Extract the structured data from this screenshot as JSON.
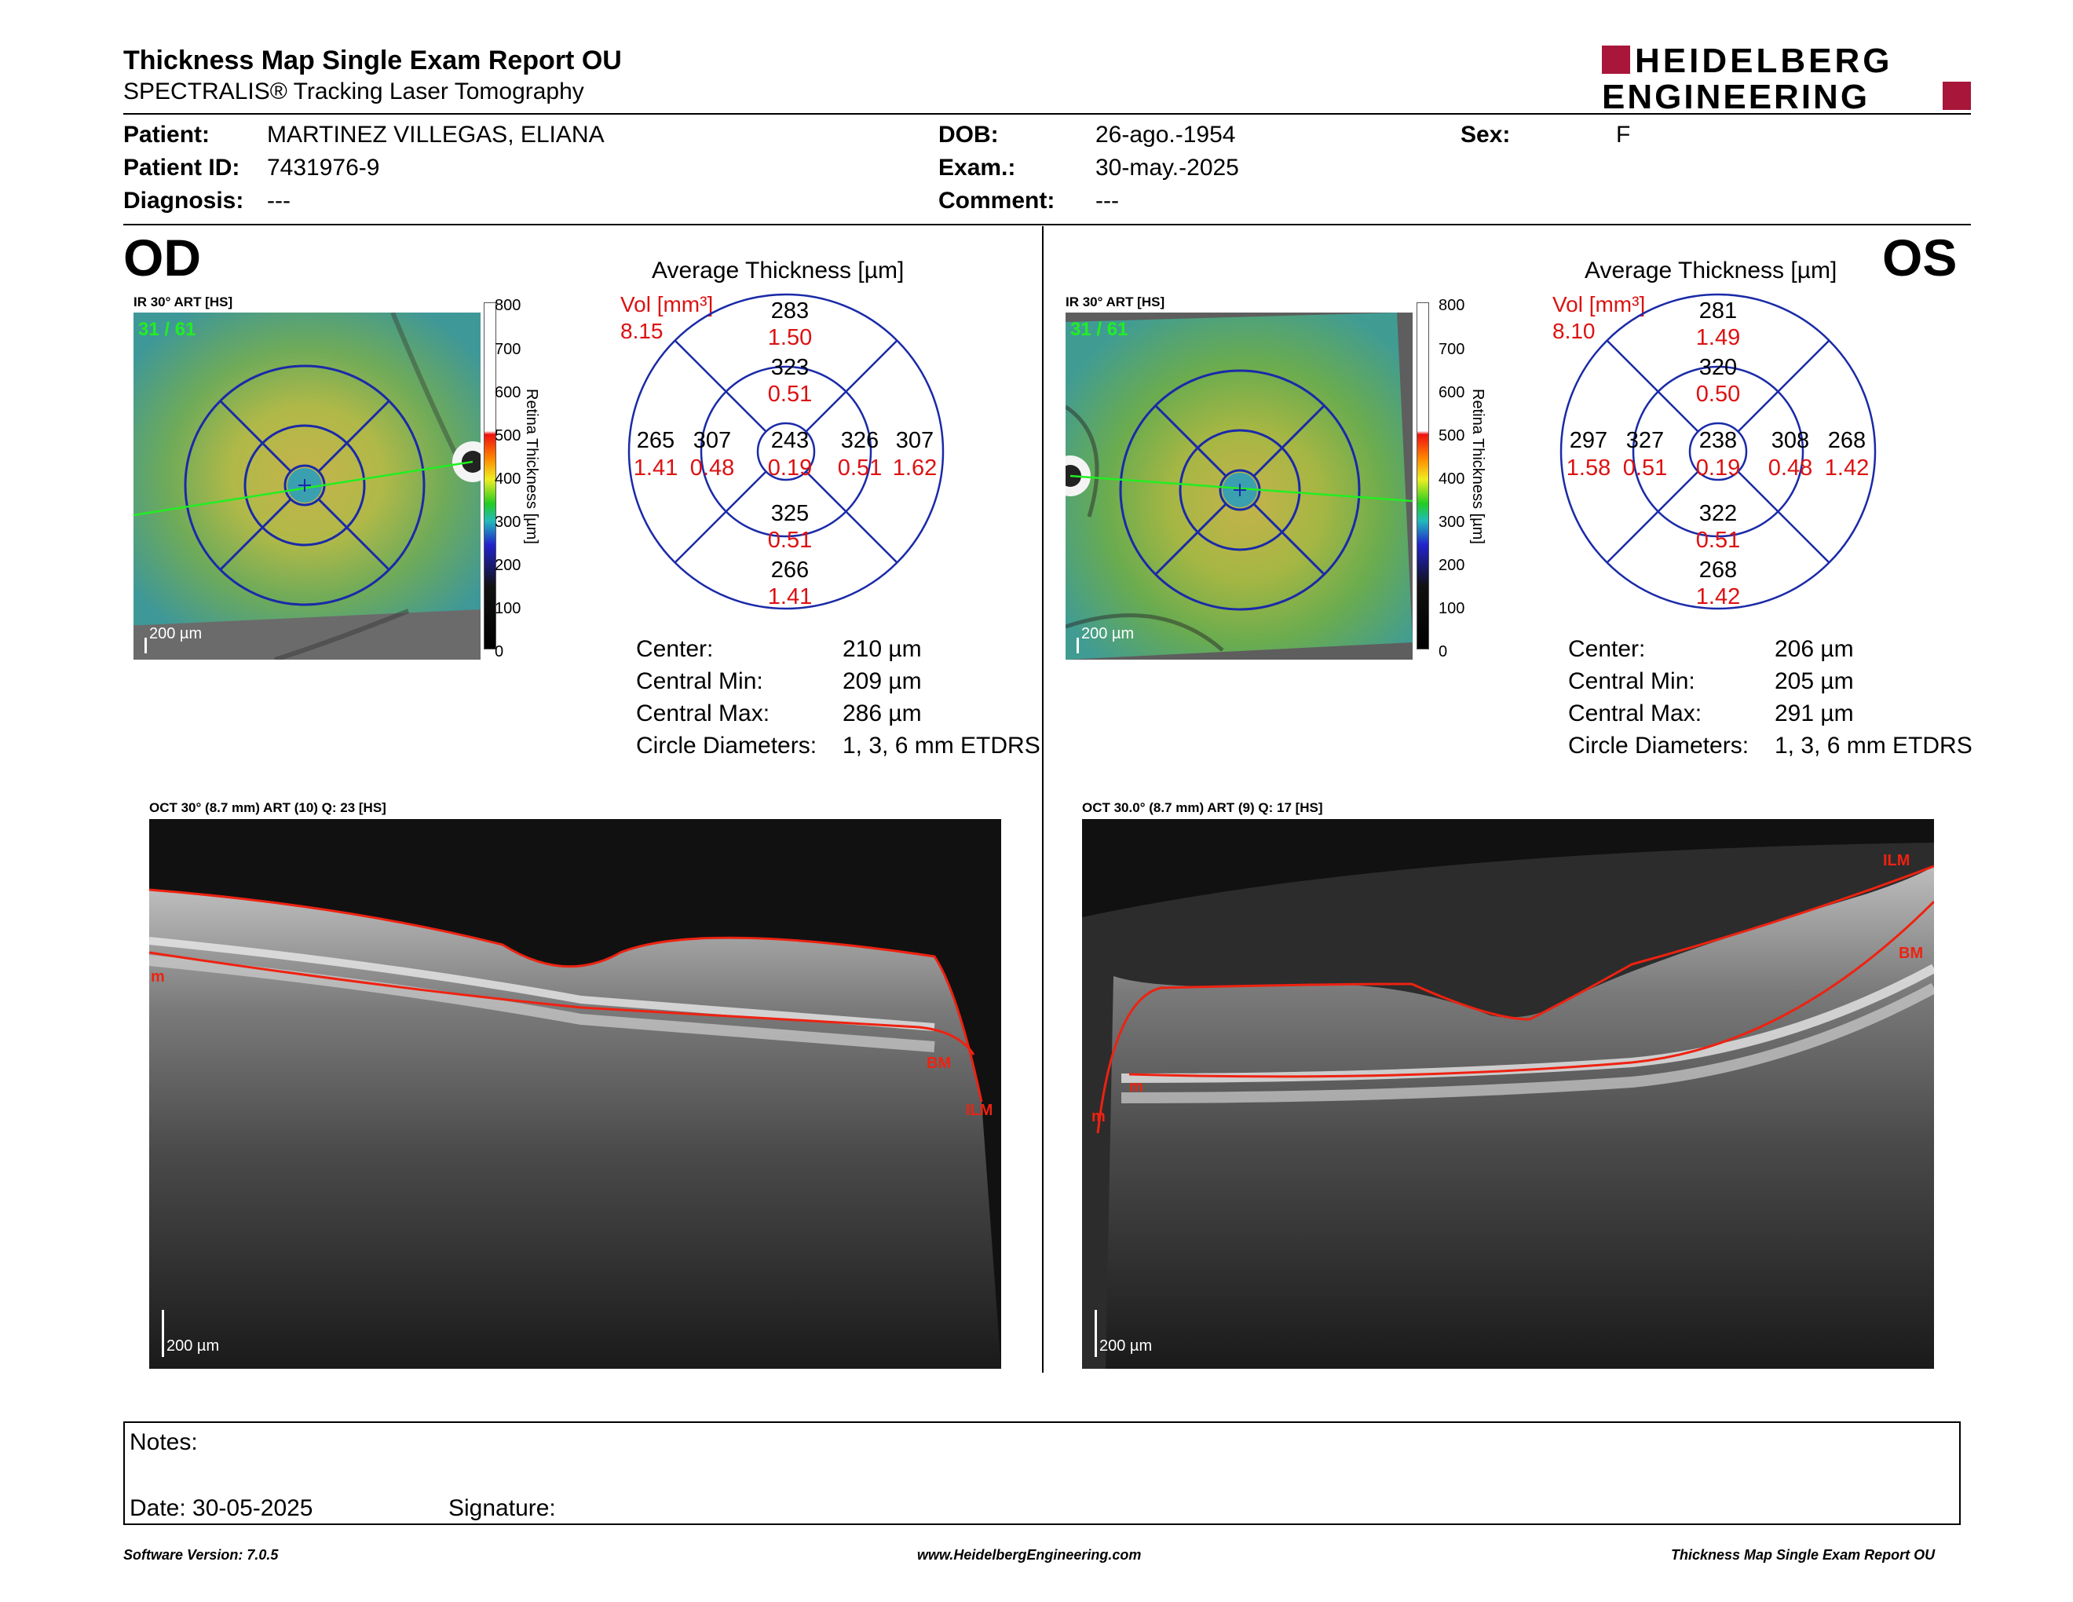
{
  "header": {
    "title": "Thickness Map Single Exam Report OU",
    "subtitle": "SPECTRALIS® Tracking Laser Tomography",
    "logo_line1": "HEIDELBERG",
    "logo_line2": "ENGINEERING",
    "brand_color": "#a8163a"
  },
  "patient": {
    "patient_label": "Patient:",
    "patient_value": "MARTINEZ VILLEGAS, ELIANA",
    "id_label": "Patient ID:",
    "id_value": "7431976-9",
    "diagnosis_label": "Diagnosis:",
    "diagnosis_value": "---",
    "dob_label": "DOB:",
    "dob_value": "26-ago.-1954",
    "exam_label": "Exam.:",
    "exam_value": "30-may.-2025",
    "comment_label": "Comment:",
    "comment_value": "---",
    "sex_label": "Sex:",
    "sex_value": "F"
  },
  "colorbar": {
    "ticks": [
      "800",
      "700",
      "600",
      "500",
      "400",
      "300",
      "200",
      "100",
      "0"
    ],
    "label": "Retina Thickness [µm]"
  },
  "od": {
    "eye": "OD",
    "ir_label": "IR 30° ART [HS]",
    "frame": "31 / 61",
    "scale": "200 µm",
    "avg_title": "Average Thickness [µm]",
    "vol_label": "Vol [mm³]",
    "vol_value": "8.15",
    "sectors": {
      "outer_sup": [
        "283",
        "1.50"
      ],
      "inner_sup": [
        "323",
        "0.51"
      ],
      "outer_temp": [
        "265",
        "1.41"
      ],
      "inner_temp": [
        "307",
        "0.48"
      ],
      "center": [
        "243",
        "0.19"
      ],
      "inner_nas": [
        "326",
        "0.51"
      ],
      "outer_nas": [
        "307",
        "1.62"
      ],
      "inner_inf": [
        "325",
        "0.51"
      ],
      "outer_inf": [
        "266",
        "1.41"
      ]
    },
    "stats": [
      {
        "label": "Center:",
        "value": "210 µm"
      },
      {
        "label": "Central Min:",
        "value": "209 µm"
      },
      {
        "label": "Central Max:",
        "value": "286 µm"
      },
      {
        "label": "Circle Diameters:",
        "value": "1, 3, 6 mm ETDRS"
      }
    ],
    "oct_label": "OCT 30° (8.7 mm) ART (10) Q: 23 [HS]",
    "oct_scale": "200 µm",
    "oct_tags": [
      "m",
      "BM",
      "ILM"
    ]
  },
  "os": {
    "eye": "OS",
    "ir_label": "IR 30° ART [HS]",
    "frame": "31 / 61",
    "scale": "200 µm",
    "avg_title": "Average Thickness [µm]",
    "vol_label": "Vol [mm³]",
    "vol_value": "8.10",
    "sectors": {
      "outer_sup": [
        "281",
        "1.49"
      ],
      "inner_sup": [
        "320",
        "0.50"
      ],
      "outer_temp": [
        "297",
        "1.58"
      ],
      "inner_temp": [
        "327",
        "0.51"
      ],
      "center": [
        "238",
        "0.19"
      ],
      "inner_nas": [
        "308",
        "0.48"
      ],
      "outer_nas": [
        "268",
        "1.42"
      ],
      "inner_inf": [
        "322",
        "0.51"
      ],
      "outer_inf": [
        "268",
        "1.42"
      ]
    },
    "stats": [
      {
        "label": "Center:",
        "value": "206 µm"
      },
      {
        "label": "Central Min:",
        "value": "205 µm"
      },
      {
        "label": "Central Max:",
        "value": "291 µm"
      },
      {
        "label": "Circle Diameters:",
        "value": "1, 3, 6 mm ETDRS"
      }
    ],
    "oct_label": "OCT 30.0° (8.7 mm) ART (9) Q: 17 [HS]",
    "oct_scale": "200 µm",
    "oct_tags": [
      "ILM",
      "BM",
      "m",
      "m"
    ]
  },
  "notes": {
    "notes_label": "Notes:",
    "date_label": "Date: 30-05-2025",
    "signature_label": "Signature:"
  },
  "footer": {
    "software": "Software Version: 7.0.5",
    "website": "www.HeidelbergEngineering.com",
    "report": "Thickness Map Single Exam Report OU"
  }
}
